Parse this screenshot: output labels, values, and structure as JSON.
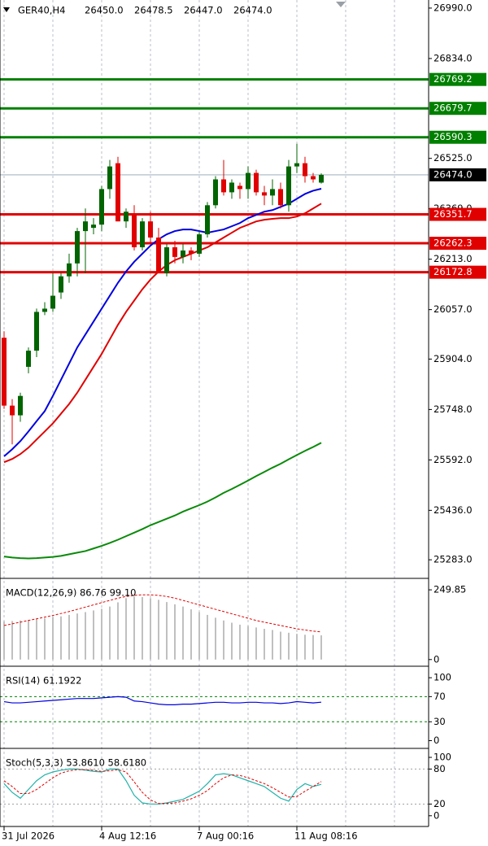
{
  "chart_data": [
    {
      "type": "candlestick",
      "title": "GER40,H4",
      "header_values": [
        "26450.0",
        "26478.5",
        "26447.0",
        "26474.0"
      ],
      "categories": [
        "31 Jul 2026",
        null,
        null,
        null,
        null,
        null,
        null,
        null,
        null,
        null,
        null,
        null,
        "4 Aug 12:16",
        null,
        null,
        null,
        null,
        null,
        null,
        null,
        null,
        null,
        null,
        null,
        "7 Aug 00:16",
        null,
        null,
        null,
        null,
        null,
        null,
        null,
        null,
        null,
        null,
        null,
        "11 Aug 08:16",
        null,
        null,
        null
      ],
      "open": [
        25970,
        25760,
        25730,
        25880,
        25930,
        26050,
        26060,
        26110,
        26160,
        26200,
        26300,
        26310,
        26320,
        26430,
        26510,
        26330,
        26350,
        26250,
        26330,
        26280,
        26170,
        26250,
        26220,
        26240,
        26230,
        26290,
        26380,
        26460,
        26420,
        26440,
        26430,
        26480,
        26420,
        26410,
        26430,
        26380,
        26500,
        26510,
        26470,
        26450
      ],
      "high": [
        25990,
        25780,
        25800,
        25940,
        26060,
        26080,
        26170,
        26170,
        26230,
        26310,
        26370,
        26340,
        26440,
        26520,
        26530,
        26370,
        26380,
        26340,
        26360,
        26310,
        26260,
        26270,
        26260,
        26250,
        26300,
        26390,
        26470,
        26520,
        26460,
        26450,
        26500,
        26490,
        26440,
        26460,
        26450,
        26520,
        26570,
        26530,
        26480,
        26478.5
      ],
      "low": [
        25750,
        25640,
        25710,
        25860,
        25910,
        26040,
        26050,
        26090,
        26140,
        26160,
        26170,
        26290,
        26300,
        26400,
        26330,
        26310,
        26240,
        26240,
        26260,
        26170,
        26160,
        26200,
        26200,
        26210,
        26220,
        26280,
        26370,
        26410,
        26400,
        26400,
        26400,
        26410,
        26380,
        26380,
        26370,
        26360,
        26480,
        26450,
        26450,
        26447
      ],
      "close": [
        25760,
        25730,
        25790,
        25930,
        26050,
        26060,
        26100,
        26160,
        26200,
        26300,
        26330,
        26320,
        26430,
        26500,
        26330,
        26360,
        26250,
        26330,
        26280,
        26170,
        26250,
        26220,
        26240,
        26230,
        26290,
        26380,
        26460,
        26420,
        26450,
        26430,
        26480,
        26420,
        26410,
        26430,
        26380,
        26500,
        26510,
        26470,
        26460,
        26474
      ],
      "up_color": "#006400",
      "down_color": "#e00000",
      "lines": [
        {
          "color": "#0000e0",
          "values": [
            25603,
            25625,
            25650,
            25680,
            25712,
            25743,
            25790,
            25840,
            25890,
            25940,
            25980,
            26020,
            26060,
            26100,
            26140,
            26175,
            26205,
            26230,
            26255,
            26275,
            26290,
            26300,
            26305,
            26305,
            26300,
            26295,
            26300,
            26305,
            26315,
            26325,
            26340,
            26350,
            26360,
            26365,
            26375,
            26385,
            26400,
            26415,
            26425,
            26431
          ]
        },
        {
          "color": "#e00000",
          "values": [
            25585,
            25595,
            25610,
            25630,
            25655,
            25680,
            25705,
            25735,
            25765,
            25800,
            25840,
            25880,
            25920,
            25965,
            26010,
            26050,
            26085,
            26120,
            26150,
            26175,
            26195,
            26210,
            26220,
            26230,
            26240,
            26250,
            26265,
            26280,
            26295,
            26310,
            26320,
            26330,
            26335,
            26338,
            26340,
            26340,
            26345,
            26355,
            26370,
            26385
          ]
        },
        {
          "color": "#0a8a0a",
          "values": [
            25293,
            25290,
            25288,
            25287,
            25288,
            25290,
            25292,
            25295,
            25300,
            25305,
            25310,
            25318,
            25326,
            25335,
            25345,
            25356,
            25367,
            25378,
            25390,
            25400,
            25410,
            25420,
            25432,
            25442,
            25452,
            25463,
            25476,
            25490,
            25502,
            25515,
            25528,
            25542,
            25555,
            25568,
            25580,
            25594,
            25607,
            25620,
            25632,
            25645
          ]
        }
      ],
      "levels": [
        {
          "value": 26769.2,
          "color": "#008000"
        },
        {
          "value": 26679.7,
          "color": "#008000"
        },
        {
          "value": 26590.3,
          "color": "#008000"
        },
        {
          "value": 26351.7,
          "color": "#e00000"
        },
        {
          "value": 26262.3,
          "color": "#e00000"
        },
        {
          "value": 26172.8,
          "color": "#e00000"
        }
      ],
      "last": {
        "value": 26474,
        "label": "26474.0"
      },
      "ylim": [
        25228,
        27015
      ],
      "yticks": [
        {
          "value": 26990,
          "label": "26990.0"
        },
        {
          "value": 26834,
          "label": "26834.0"
        },
        {
          "value": 26525,
          "label": "26525.0"
        },
        {
          "value": 26369,
          "label": "26369.0"
        },
        {
          "value": 26213,
          "label": "26213.0"
        },
        {
          "value": 26057,
          "label": "26057.0"
        },
        {
          "value": 25904,
          "label": "25904.0"
        },
        {
          "value": 25748,
          "label": "25748.0"
        },
        {
          "value": 25592,
          "label": "25592.0"
        },
        {
          "value": 25436,
          "label": "25436.0"
        },
        {
          "value": 25283,
          "label": "25283.0"
        }
      ],
      "grid": true
    },
    {
      "type": "macd",
      "label": "MACD(12,26,9) 86.76 99.10",
      "color": "#c0c0c0",
      "signal_color": "#e00000",
      "values": [
        137,
        138,
        140,
        142,
        145,
        148,
        152,
        155,
        160,
        165,
        170,
        176,
        182,
        190,
        205,
        220,
        226,
        224,
        220,
        214,
        206,
        198,
        190,
        180,
        170,
        160,
        150,
        140,
        132,
        125,
        120,
        115,
        110,
        106,
        100,
        96,
        92,
        89,
        88,
        86.76
      ],
      "signal": [
        122,
        128,
        134,
        140,
        146,
        152,
        158,
        165,
        172,
        180,
        188,
        196,
        204,
        212,
        220,
        226,
        230,
        232,
        232,
        230,
        226,
        220,
        212,
        204,
        196,
        188,
        180,
        172,
        164,
        156,
        148,
        140,
        134,
        128,
        122,
        116,
        110,
        106,
        102,
        99.1
      ],
      "ylim": [
        -21,
        288
      ],
      "yticks": [
        249.85,
        0
      ]
    },
    {
      "type": "rsi",
      "label": "RSI(14) 61.1922",
      "color": "#0000e0",
      "level_color": "#008000",
      "values": [
        62,
        60,
        60,
        61,
        62,
        63,
        64,
        65,
        66,
        67,
        67,
        67,
        68,
        69,
        70,
        69,
        63,
        62,
        60,
        58,
        57,
        57,
        58,
        58,
        59,
        60,
        61,
        61,
        60,
        60,
        61,
        61,
        60,
        60,
        59,
        60,
        62,
        61,
        60,
        61.1922
      ],
      "levels": [
        70,
        30
      ],
      "ylim": [
        -11,
        117
      ],
      "yticks": [
        100,
        70,
        30,
        0
      ]
    },
    {
      "type": "stoch",
      "label": "Stoch(5,3,3) 53.8610 58.6180",
      "color": "#20b2aa",
      "signal_color": "#e00000",
      "level_color": "#a0a0a0",
      "values": [
        55,
        40,
        30,
        45,
        60,
        70,
        75,
        78,
        80,
        80,
        78,
        76,
        75,
        80,
        80,
        60,
        35,
        22,
        20,
        20,
        22,
        25,
        28,
        35,
        42,
        55,
        70,
        72,
        70,
        65,
        60,
        55,
        50,
        40,
        30,
        25,
        45,
        55,
        50,
        53.861
      ],
      "signal": [
        60,
        50,
        38,
        38,
        45,
        55,
        65,
        73,
        77,
        79,
        79,
        78,
        76,
        77,
        79,
        75,
        58,
        40,
        27,
        21,
        21,
        22,
        25,
        29,
        35,
        43,
        55,
        65,
        70,
        69,
        65,
        60,
        55,
        48,
        40,
        32,
        33,
        42,
        50,
        58.618
      ],
      "levels": [
        80,
        20
      ],
      "ylim": [
        -17,
        114
      ],
      "yticks": [
        100,
        80,
        20,
        0
      ]
    }
  ]
}
